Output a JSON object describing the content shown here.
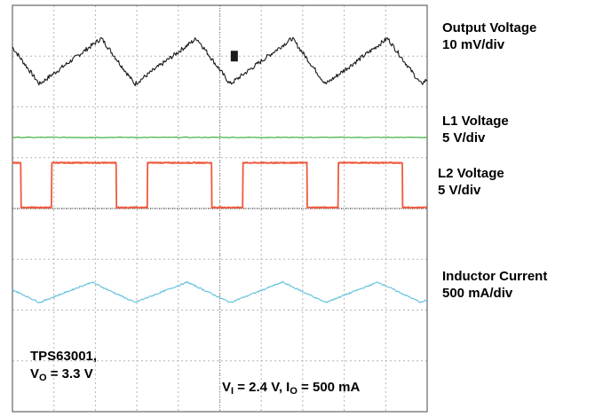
{
  "chart_data": {
    "type": "line",
    "title": "",
    "xlabel": "",
    "ylabel": "",
    "grid": true,
    "x_divisions": 10,
    "y_divisions": 8,
    "channels": [
      {
        "name": "Output Voltage",
        "scale": "10 mV/div",
        "color": "#1a1a1a",
        "waveform": "ripple",
        "baseline_div": 6.9,
        "peak_to_peak_div": 0.9,
        "period_div": 2.3,
        "phase_div": 0.65,
        "marker_x_div": 5.35
      },
      {
        "name": "L1 Voltage",
        "scale": "5 V/div",
        "color": "#40b040",
        "waveform": "dc",
        "baseline_div": 5.4
      },
      {
        "name": "L2 Voltage",
        "scale": "5 V/div",
        "color": "#ee5a3e",
        "waveform": "square",
        "low_div": 4.02,
        "high_div": 4.9,
        "period_div": 2.3,
        "high_start_div": 0.3,
        "high_end_div": 1.85,
        "phase_div": 0.65
      },
      {
        "name": "Inductor Current",
        "scale": "500 mA/div",
        "color": "#60c0dc",
        "waveform": "triangle",
        "baseline_div": 2.35,
        "peak_to_peak_div": 0.4,
        "period_div": 2.3,
        "phase_div": 0.65
      }
    ]
  },
  "labels": {
    "ch1_name": "Output Voltage",
    "ch1_scale": "10 mV/div",
    "ch2_name": "L1 Voltage",
    "ch2_scale": "5 V/div",
    "ch3_name": "L2 Voltage",
    "ch3_scale": "5 V/div",
    "ch4_name": "Inductor Current",
    "ch4_scale": "500 mA/div"
  },
  "annotations": {
    "device": "TPS63001,",
    "vout_symbol": "V",
    "vout_sub": "O",
    "vout_value": " = 3.3 V",
    "vin_symbol": "V",
    "vin_sub": "I",
    "vin_value": " = 2.4 V, ",
    "iout_symbol": "I",
    "iout_sub": "O",
    "iout_value": " = 500 mA"
  }
}
